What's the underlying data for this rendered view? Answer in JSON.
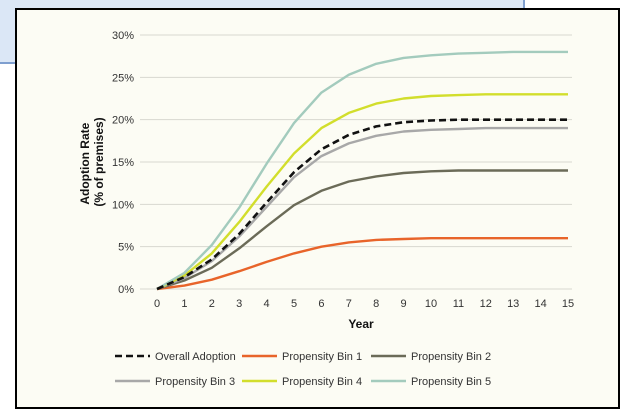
{
  "chart_data": {
    "type": "line",
    "title": "",
    "xlabel": "Year",
    "ylabel": "Adoption Rate (% of premises)",
    "ylabel_lines": [
      "Adoption Rate",
      "(% of premises)"
    ],
    "x": [
      0,
      1,
      2,
      3,
      4,
      5,
      6,
      7,
      8,
      9,
      10,
      11,
      12,
      13,
      14,
      15
    ],
    "xlim": [
      0,
      15
    ],
    "ylim": [
      0,
      30
    ],
    "yticks": [
      0,
      5,
      10,
      15,
      20,
      25,
      30
    ],
    "ytick_labels": [
      "0%",
      "5%",
      "10%",
      "15%",
      "20%",
      "25%",
      "30%"
    ],
    "grid": "horizontal",
    "legend_position": "bottom",
    "series": [
      {
        "name": "Overall Adoption",
        "color": "#111111",
        "dashed": true,
        "values": [
          0,
          1.4,
          3.5,
          6.5,
          10.2,
          13.8,
          16.5,
          18.2,
          19.2,
          19.7,
          19.9,
          20.0,
          20.0,
          20.0,
          20.0,
          20.0
        ]
      },
      {
        "name": "Propensity Bin 1",
        "color": "#e8642a",
        "dashed": false,
        "values": [
          0,
          0.4,
          1.1,
          2.1,
          3.2,
          4.2,
          5.0,
          5.5,
          5.8,
          5.9,
          6.0,
          6.0,
          6.0,
          6.0,
          6.0,
          6.0
        ]
      },
      {
        "name": "Propensity Bin 2",
        "color": "#6b6b58",
        "dashed": false,
        "values": [
          0,
          1.0,
          2.5,
          4.8,
          7.4,
          9.9,
          11.6,
          12.7,
          13.3,
          13.7,
          13.9,
          14.0,
          14.0,
          14.0,
          14.0,
          14.0
        ]
      },
      {
        "name": "Propensity Bin 3",
        "color": "#a8a8a8",
        "dashed": false,
        "values": [
          0,
          1.3,
          3.3,
          6.2,
          9.7,
          13.2,
          15.7,
          17.2,
          18.1,
          18.6,
          18.8,
          18.9,
          19.0,
          19.0,
          19.0,
          19.0
        ]
      },
      {
        "name": "Propensity Bin 4",
        "color": "#d2de2c",
        "dashed": false,
        "values": [
          0,
          1.6,
          4.2,
          7.9,
          12.1,
          16.0,
          19.0,
          20.8,
          21.9,
          22.5,
          22.8,
          22.9,
          23.0,
          23.0,
          23.0,
          23.0
        ]
      },
      {
        "name": "Propensity Bin 5",
        "color": "#a3cbbd",
        "dashed": false,
        "values": [
          0,
          1.9,
          5.2,
          9.6,
          14.8,
          19.6,
          23.2,
          25.3,
          26.6,
          27.3,
          27.6,
          27.8,
          27.9,
          28.0,
          28.0,
          28.0
        ]
      }
    ]
  }
}
